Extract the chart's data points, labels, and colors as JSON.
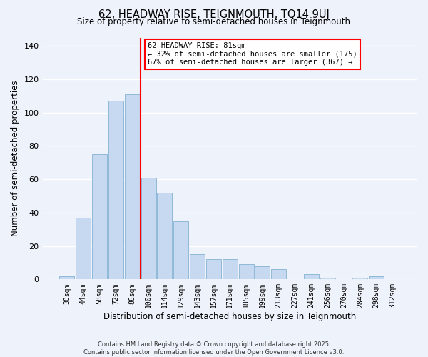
{
  "title": "62, HEADWAY RISE, TEIGNMOUTH, TQ14 9UJ",
  "subtitle": "Size of property relative to semi-detached houses in Teignmouth",
  "bar_labels": [
    "30sqm",
    "44sqm",
    "58sqm",
    "72sqm",
    "86sqm",
    "100sqm",
    "114sqm",
    "129sqm",
    "143sqm",
    "157sqm",
    "171sqm",
    "185sqm",
    "199sqm",
    "213sqm",
    "227sqm",
    "241sqm",
    "256sqm",
    "270sqm",
    "284sqm",
    "298sqm",
    "312sqm"
  ],
  "bar_values": [
    2,
    37,
    75,
    107,
    111,
    61,
    52,
    35,
    15,
    12,
    12,
    9,
    8,
    6,
    0,
    3,
    1,
    0,
    1,
    2,
    0
  ],
  "bar_color": "#c6d9f0",
  "bar_edge_color": "#8fb8d8",
  "vline_x": 4.5,
  "vline_color": "red",
  "xlabel": "Distribution of semi-detached houses by size in Teignmouth",
  "ylabel": "Number of semi-detached properties",
  "ylim": [
    0,
    145
  ],
  "yticks": [
    0,
    20,
    40,
    60,
    80,
    100,
    120,
    140
  ],
  "annotation_title": "62 HEADWAY RISE: 81sqm",
  "annotation_line1": "← 32% of semi-detached houses are smaller (175)",
  "annotation_line2": "67% of semi-detached houses are larger (367) →",
  "annotation_box_color": "white",
  "annotation_box_edge": "red",
  "footer1": "Contains HM Land Registry data © Crown copyright and database right 2025.",
  "footer2": "Contains public sector information licensed under the Open Government Licence v3.0.",
  "background_color": "#eef2fa",
  "grid_color": "white"
}
